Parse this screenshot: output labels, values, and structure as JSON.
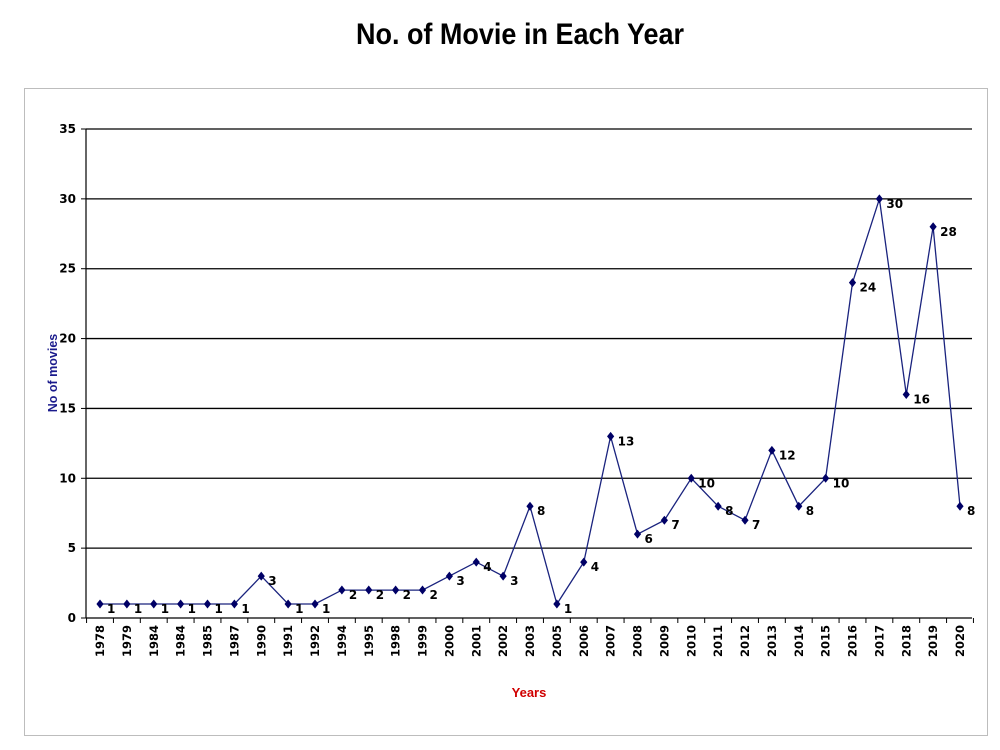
{
  "chart_data": {
    "type": "line",
    "title": "No. of Movie in Each Year",
    "xlabel": "Years",
    "ylabel": "No of movies",
    "categories": [
      "1978",
      "1979",
      "1984",
      "1984",
      "1985",
      "1987",
      "1990",
      "1991",
      "1992",
      "1994",
      "1995",
      "1998",
      "1999",
      "2000",
      "2001",
      "2002",
      "2003",
      "2005",
      "2006",
      "2007",
      "2008",
      "2009",
      "2010",
      "2011",
      "2012",
      "2013",
      "2014",
      "2015",
      "2016",
      "2017",
      "2018",
      "2019",
      "2020"
    ],
    "series": [
      {
        "values": [
          1,
          1,
          1,
          1,
          1,
          1,
          3,
          1,
          1,
          2,
          2,
          2,
          2,
          3,
          4,
          3,
          8,
          1,
          4,
          13,
          6,
          7,
          10,
          8,
          7,
          12,
          8,
          10,
          24,
          30,
          16,
          28,
          8
        ]
      }
    ],
    "ylim": [
      0,
      35
    ],
    "yticks": [
      0,
      5,
      10,
      15,
      20,
      25,
      30,
      35
    ],
    "grid": true,
    "legend": "none",
    "colors": {
      "line": "#1a237e",
      "marker": "#000066",
      "ylabel": "#1a1a8c",
      "xlabel": "#d00000",
      "grid": "#000000"
    }
  }
}
